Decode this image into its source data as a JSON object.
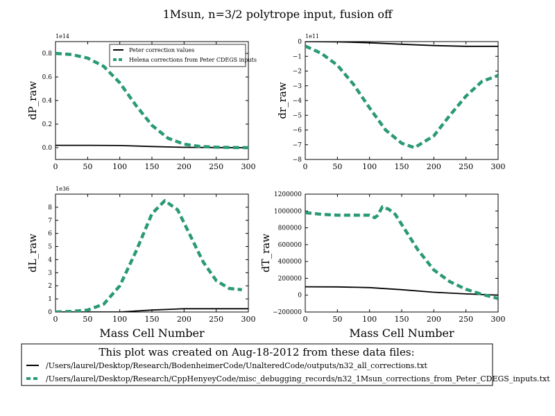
{
  "figure": {
    "title": "1Msun, n=3/2 polytrope input, fusion off",
    "footer": {
      "title": "This plot was created on Aug-18-2012 from these data files:",
      "items": [
        "/Users/laurel/Desktop/Research/BodenheimerCode/UnalteredCode/outputs/n32_all_corrections.txt",
        "/Users/laurel/Desktop/Research/CppHenyeyCode/misc_debugging_records/n32_1Msun_corrections_from_Peter_CDEGS_inputs.txt"
      ]
    },
    "colors": {
      "peter": "#000000",
      "helena": "#2a9a72"
    }
  },
  "chart_data": [
    {
      "type": "line",
      "ylabel": "dP_raw",
      "xlabel": "",
      "exponent": "1e14",
      "xlim": [
        0,
        300
      ],
      "ylim": [
        -0.1,
        0.9
      ],
      "xticks": [
        0,
        50,
        100,
        150,
        200,
        250,
        300
      ],
      "yticks": [
        0.0,
        0.2,
        0.4,
        0.6,
        0.8
      ],
      "ytick_labels": [
        "0.0",
        "0.2",
        "0.4",
        "0.6",
        "0.8"
      ],
      "legend": {
        "position": "top-right",
        "entries": [
          "Peter correction values",
          "Helena corrections from Peter CDEGS inputs"
        ]
      },
      "series": [
        {
          "name": "Peter correction values",
          "style": "solid",
          "x": [
            0,
            50,
            100,
            150,
            200,
            250,
            300
          ],
          "y": [
            0.02,
            0.02,
            0.018,
            0.01,
            0.003,
            0.001,
            0.0
          ]
        },
        {
          "name": "Helena corrections from Peter CDEGS inputs",
          "style": "dashed",
          "x": [
            0,
            25,
            50,
            75,
            100,
            125,
            150,
            175,
            200,
            225,
            250,
            275,
            300
          ],
          "y": [
            0.8,
            0.79,
            0.76,
            0.69,
            0.55,
            0.36,
            0.19,
            0.08,
            0.03,
            0.01,
            0.004,
            0.002,
            0.0
          ]
        }
      ]
    },
    {
      "type": "line",
      "ylabel": "dr_raw",
      "xlabel": "",
      "exponent": "1e11",
      "xlim": [
        0,
        300
      ],
      "ylim": [
        -8,
        0
      ],
      "xticks": [
        0,
        50,
        100,
        150,
        200,
        250,
        300
      ],
      "yticks": [
        0,
        -1,
        -2,
        -3,
        -4,
        -5,
        -6,
        -7,
        -8
      ],
      "ytick_labels": [
        "0",
        "−1",
        "−2",
        "−3",
        "−4",
        "−5",
        "−6",
        "−7",
        "−8"
      ],
      "series": [
        {
          "name": "Peter correction values",
          "style": "solid",
          "x": [
            0,
            50,
            100,
            150,
            200,
            250,
            300
          ],
          "y": [
            0.0,
            -0.02,
            -0.08,
            -0.18,
            -0.27,
            -0.32,
            -0.32
          ]
        },
        {
          "name": "Helena corrections from Peter CDEGS inputs",
          "style": "dashed",
          "x": [
            0,
            25,
            50,
            75,
            100,
            125,
            150,
            170,
            200,
            225,
            250,
            275,
            300
          ],
          "y": [
            -0.3,
            -0.8,
            -1.6,
            -2.9,
            -4.5,
            -6.0,
            -6.9,
            -7.2,
            -6.4,
            -5.0,
            -3.7,
            -2.7,
            -2.3
          ]
        }
      ]
    },
    {
      "type": "line",
      "ylabel": "dL_raw",
      "xlabel": "Mass Cell Number",
      "exponent": "1e36",
      "xlim": [
        0,
        300
      ],
      "ylim": [
        0,
        9
      ],
      "xticks": [
        0,
        50,
        100,
        150,
        200,
        250,
        300
      ],
      "yticks": [
        0,
        1,
        2,
        3,
        4,
        5,
        6,
        7,
        8
      ],
      "ytick_labels": [
        "0",
        "1",
        "2",
        "3",
        "4",
        "5",
        "6",
        "7",
        "8"
      ],
      "series": [
        {
          "name": "Peter correction values",
          "style": "solid",
          "x": [
            0,
            50,
            100,
            150,
            200,
            250,
            300
          ],
          "y": [
            0.0,
            0.0,
            0.0,
            0.15,
            0.25,
            0.25,
            0.25
          ]
        },
        {
          "name": "Helena corrections from Peter CDEGS inputs",
          "style": "dashed",
          "x": [
            0,
            25,
            50,
            75,
            100,
            125,
            150,
            170,
            190,
            210,
            230,
            250,
            270,
            290
          ],
          "y": [
            0.0,
            0.05,
            0.15,
            0.6,
            2.0,
            4.6,
            7.5,
            8.5,
            7.8,
            5.8,
            3.8,
            2.4,
            1.8,
            1.7
          ]
        }
      ]
    },
    {
      "type": "line",
      "ylabel": "dT_raw",
      "xlabel": "Mass Cell Number",
      "exponent": "",
      "xlim": [
        0,
        300
      ],
      "ylim": [
        -200000,
        1200000
      ],
      "xticks": [
        0,
        50,
        100,
        150,
        200,
        250,
        300
      ],
      "yticks": [
        -200000,
        0,
        200000,
        400000,
        600000,
        800000,
        1000000,
        1200000
      ],
      "ytick_labels": [
        "−200000",
        "0",
        "200000",
        "400000",
        "600000",
        "800000",
        "1000000",
        "1200000"
      ],
      "series": [
        {
          "name": "Peter correction values",
          "style": "solid",
          "x": [
            0,
            50,
            100,
            150,
            200,
            250,
            300
          ],
          "y": [
            100000,
            98000,
            90000,
            65000,
            35000,
            15000,
            0
          ]
        },
        {
          "name": "Helena corrections from Peter CDEGS inputs",
          "style": "dashed",
          "x": [
            0,
            25,
            50,
            75,
            100,
            108,
            113,
            120,
            130,
            140,
            150,
            175,
            200,
            225,
            250,
            275,
            300
          ],
          "y": [
            980000,
            960000,
            950000,
            950000,
            950000,
            920000,
            950000,
            1050000,
            1020000,
            960000,
            840000,
            540000,
            300000,
            160000,
            70000,
            10000,
            -40000
          ]
        }
      ]
    }
  ]
}
